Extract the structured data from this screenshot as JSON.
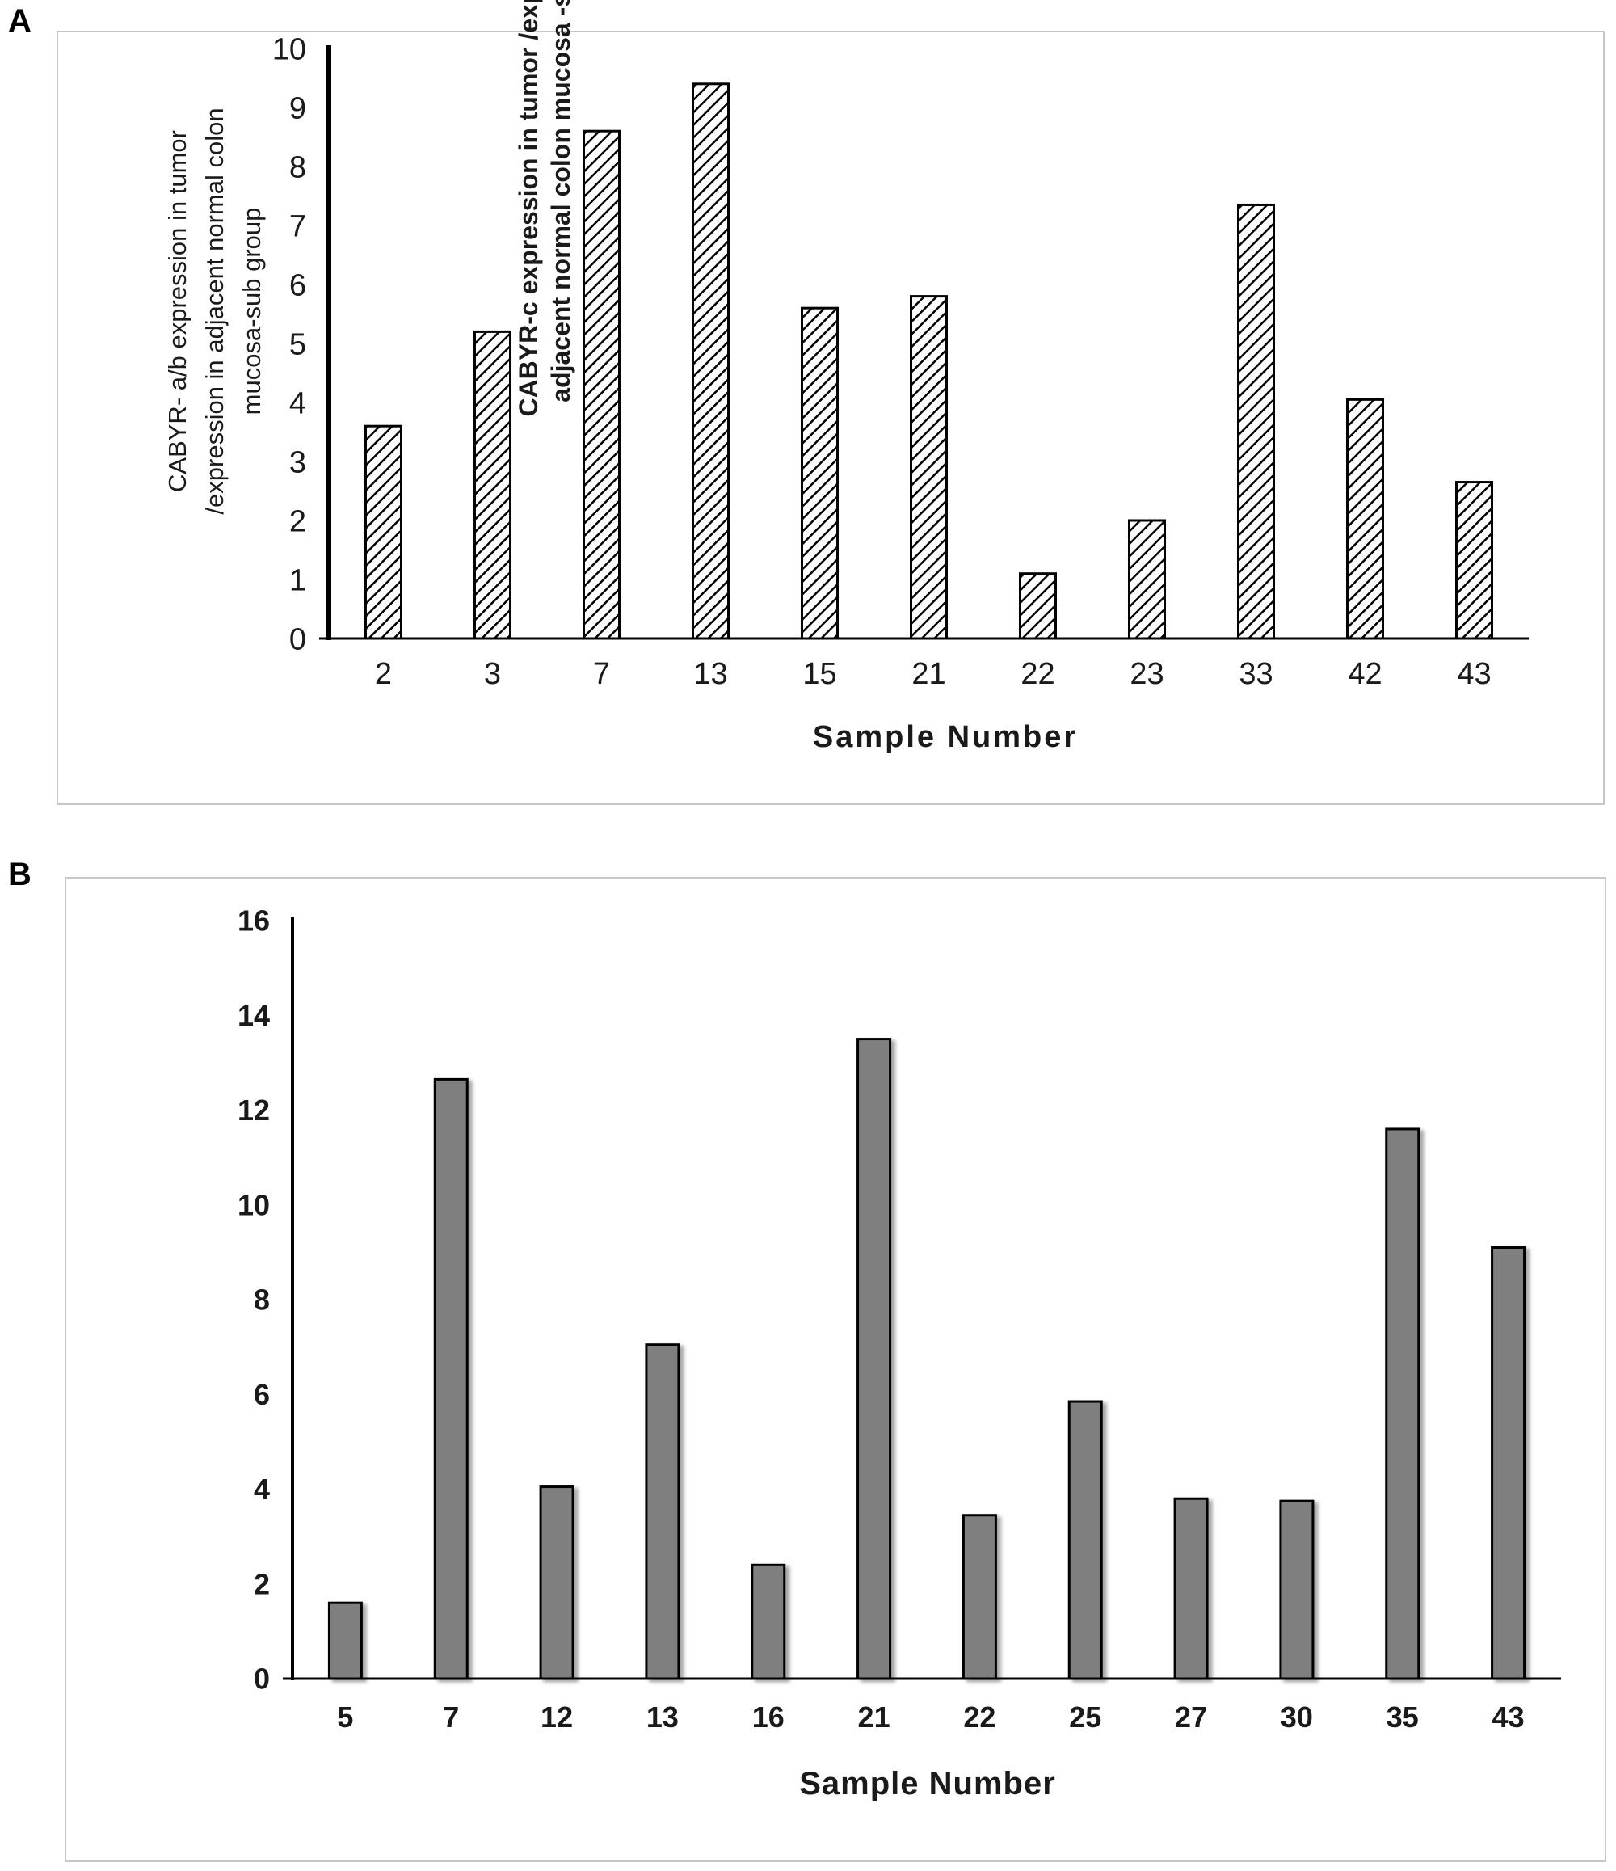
{
  "panels": {
    "a_label": "A",
    "b_label": "B"
  },
  "colors": {
    "axis": "#000000",
    "frame": "#c8c8c8",
    "bar_a_fill": "#ffffff",
    "bar_a_hatch": "#000000",
    "bar_b_fill": "#7f7f7f",
    "bar_outline": "#000000"
  },
  "chart_data": [
    {
      "type": "bar",
      "panel": "A",
      "pattern": "diagonal-hatch",
      "categories": [
        "2",
        "3",
        "7",
        "13",
        "15",
        "21",
        "22",
        "23",
        "33",
        "42",
        "43"
      ],
      "values": [
        3.6,
        5.2,
        8.6,
        9.4,
        5.6,
        5.8,
        1.1,
        2.0,
        7.35,
        4.05,
        2.65
      ],
      "xlabel": "Sample Number",
      "ylabel_lines": [
        "CABYR- a/b expression in tumor",
        "/expression in adjacent  normal colon",
        "mucosa-sub group"
      ],
      "yticks": [
        "0",
        "1",
        "2",
        "3",
        "4",
        "5",
        "6",
        "7",
        "8",
        "9",
        "10"
      ],
      "ylim": [
        0,
        10
      ],
      "grid": false
    },
    {
      "type": "bar",
      "panel": "B",
      "pattern": "solid-gray",
      "categories": [
        "5",
        "7",
        "12",
        "13",
        "16",
        "21",
        "22",
        "25",
        "27",
        "30",
        "35",
        "43"
      ],
      "values": [
        1.6,
        12.65,
        4.05,
        7.05,
        2.4,
        13.5,
        3.45,
        5.85,
        3.8,
        3.75,
        11.6,
        9.1
      ],
      "xlabel": "Sample Number",
      "ylabel_lines": [
        "CABYR-c expression in tumor  /expression in",
        "adjacent  normal colon mucosa -sub group"
      ],
      "yticks": [
        "0",
        "2",
        "4",
        "6",
        "8",
        "10",
        "12",
        "14",
        "16"
      ],
      "ylim": [
        0,
        16
      ],
      "grid": false
    }
  ]
}
